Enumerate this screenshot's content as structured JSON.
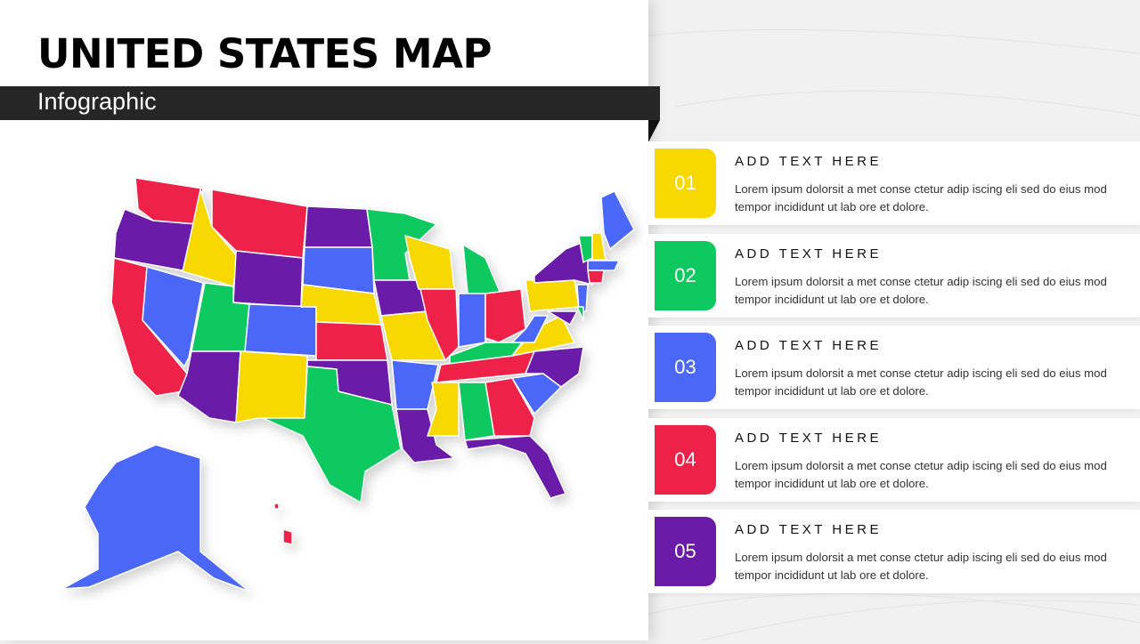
{
  "header": {
    "title": "UNITED STATES MAP",
    "subtitle": "Infographic"
  },
  "palette": {
    "yellow": "#F7D800",
    "green": "#0DC95F",
    "blue": "#4B67F8",
    "red": "#EE2249",
    "purple": "#6A1BA8"
  },
  "items": [
    {
      "number": "01",
      "heading": "ADD TEXT HERE",
      "body": "Lorem ipsum dolorsit a met conse ctetur adip iscing eli sed do eius mod tempor incididunt ut lab ore et dolore.",
      "color": "#F7D800"
    },
    {
      "number": "02",
      "heading": "ADD TEXT HERE",
      "body": "Lorem ipsum dolorsit a met conse ctetur adip iscing eli sed do eius mod tempor incididunt ut lab ore et dolore.",
      "color": "#0DC95F"
    },
    {
      "number": "03",
      "heading": "ADD TEXT HERE",
      "body": "Lorem ipsum dolorsit a met conse ctetur adip iscing eli sed do eius mod tempor incididunt ut lab ore et dolore.",
      "color": "#4B67F8"
    },
    {
      "number": "04",
      "heading": "ADD TEXT HERE",
      "body": "Lorem ipsum dolorsit a met conse ctetur adip iscing eli sed do eius mod tempor incididunt ut lab ore et dolore.",
      "color": "#EE2249"
    },
    {
      "number": "05",
      "heading": "ADD TEXT HERE",
      "body": "Lorem ipsum dolorsit a met conse ctetur adip iscing eli sed do eius mod tempor incididunt ut lab ore et dolore.",
      "color": "#6A1BA8"
    }
  ]
}
